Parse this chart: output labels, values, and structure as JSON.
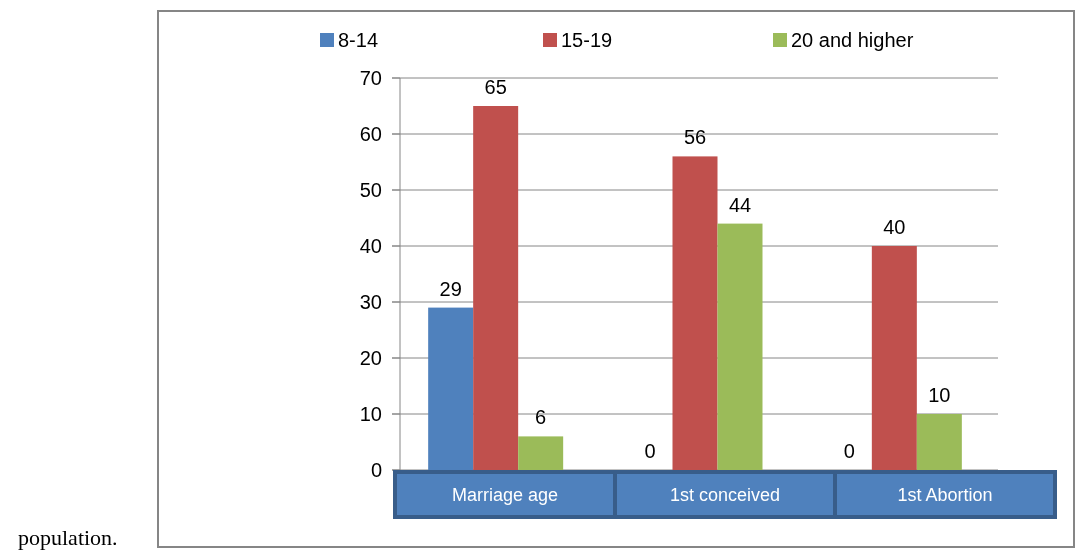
{
  "chart_data": {
    "type": "bar",
    "categories": [
      "Marriage age",
      "1st conceived",
      "1st Abortion"
    ],
    "series": [
      {
        "name": "8-14",
        "color": "#4f81bd",
        "values": [
          29,
          0,
          0
        ]
      },
      {
        "name": "15-19",
        "color": "#c0504d",
        "values": [
          65,
          56,
          40
        ]
      },
      {
        "name": "20 and higher",
        "color": "#9bbb59",
        "values": [
          6,
          44,
          10
        ]
      }
    ],
    "ylim": [
      0,
      70
    ],
    "yticks": [
      0,
      10,
      20,
      30,
      40,
      50,
      60,
      70
    ],
    "grid": "y",
    "legend": "top",
    "data_labels": true,
    "annotations": [
      "population."
    ]
  }
}
